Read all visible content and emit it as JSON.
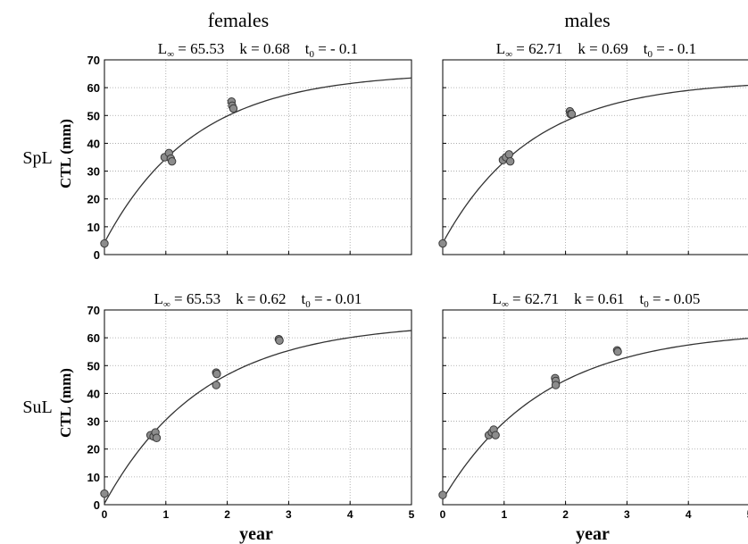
{
  "columns": [
    "females",
    "males"
  ],
  "rows": [
    "SpL",
    "SuL"
  ],
  "xlabel": "year",
  "ylabel": "CTL (mm)",
  "colors": {
    "point_fill": "#8c8c8c",
    "point_edge": "#3a3a3a",
    "curve": "#333333",
    "grid": "#a0a0a0"
  },
  "chart_data": [
    {
      "type": "scatter",
      "panel": "SpL females",
      "title_parts": {
        "linf": "L∞ = 65.53",
        "k": "k = 0.68",
        "t0": "t0 = - 0.1"
      },
      "title_spans": [
        "L",
        "∞",
        " = 65.53    k = 0.68    t",
        "0",
        " = - 0.1"
      ],
      "curve": {
        "Linf": 65.53,
        "k": 0.68,
        "t0": -0.1
      },
      "xlim": [
        0,
        5
      ],
      "ylim": [
        0,
        70
      ],
      "xticks": [],
      "yticks": [
        0,
        10,
        20,
        30,
        40,
        50,
        60,
        70
      ],
      "points": [
        [
          0,
          4
        ],
        [
          0.98,
          35
        ],
        [
          1.05,
          36.5
        ],
        [
          1.08,
          34.5
        ],
        [
          1.1,
          33.5
        ],
        [
          2.07,
          55
        ],
        [
          2.08,
          53.5
        ],
        [
          2.1,
          52.5
        ]
      ]
    },
    {
      "type": "scatter",
      "panel": "SpL males",
      "title_parts": {
        "linf": "L∞ = 62.71",
        "k": "k = 0.69",
        "t0": "t0 = - 0.1"
      },
      "title_spans": [
        "L",
        "∞",
        " = 62.71    k = 0.69    t",
        "0",
        " = - 0.1"
      ],
      "curve": {
        "Linf": 62.71,
        "k": 0.69,
        "t0": -0.1
      },
      "xlim": [
        0,
        5
      ],
      "ylim": [
        0,
        70
      ],
      "xticks": [],
      "yticks": [],
      "points": [
        [
          0,
          4
        ],
        [
          0.98,
          34
        ],
        [
          1.03,
          35
        ],
        [
          1.08,
          36
        ],
        [
          1.1,
          33.5
        ],
        [
          2.07,
          51.5
        ],
        [
          2.08,
          50.5
        ],
        [
          2.1,
          50.5
        ]
      ]
    },
    {
      "type": "scatter",
      "panel": "SuL females",
      "title_parts": {
        "linf": "L∞ = 65.53",
        "k": "k = 0.62",
        "t0": "t0 = - 0.01"
      },
      "title_spans": [
        "L",
        "∞",
        " = 65.53    k = 0.62    t",
        "0",
        " = - 0.01"
      ],
      "curve": {
        "Linf": 65.53,
        "k": 0.62,
        "t0": -0.01
      },
      "xlim": [
        0,
        5
      ],
      "ylim": [
        0,
        70
      ],
      "xticks": [
        0,
        1,
        2,
        3,
        4,
        5
      ],
      "yticks": [
        0,
        10,
        20,
        30,
        40,
        50,
        60,
        70
      ],
      "points": [
        [
          0,
          4
        ],
        [
          0.75,
          25
        ],
        [
          0.8,
          24.5
        ],
        [
          0.83,
          26
        ],
        [
          0.85,
          24
        ],
        [
          1.82,
          47.5
        ],
        [
          1.83,
          47
        ],
        [
          1.82,
          43
        ],
        [
          2.84,
          59.5
        ],
        [
          2.85,
          59
        ]
      ]
    },
    {
      "type": "scatter",
      "panel": "SuL males",
      "title_parts": {
        "linf": "L∞ = 62.71",
        "k": "k = 0.61",
        "t0": "t0 = - 0.05"
      },
      "title_spans": [
        "L",
        "∞",
        " = 62.71    k = 0.61    t",
        "0",
        " = - 0.05"
      ],
      "curve": {
        "Linf": 62.71,
        "k": 0.61,
        "t0": -0.05
      },
      "xlim": [
        0,
        5
      ],
      "ylim": [
        0,
        70
      ],
      "xticks": [
        0,
        1,
        2,
        3,
        4,
        5
      ],
      "yticks": [],
      "points": [
        [
          0,
          3.5
        ],
        [
          0.75,
          25
        ],
        [
          0.8,
          26
        ],
        [
          0.83,
          27
        ],
        [
          0.86,
          25
        ],
        [
          1.83,
          45.5
        ],
        [
          1.84,
          44.5
        ],
        [
          1.84,
          43
        ],
        [
          2.84,
          55.5
        ],
        [
          2.85,
          55
        ]
      ]
    }
  ]
}
